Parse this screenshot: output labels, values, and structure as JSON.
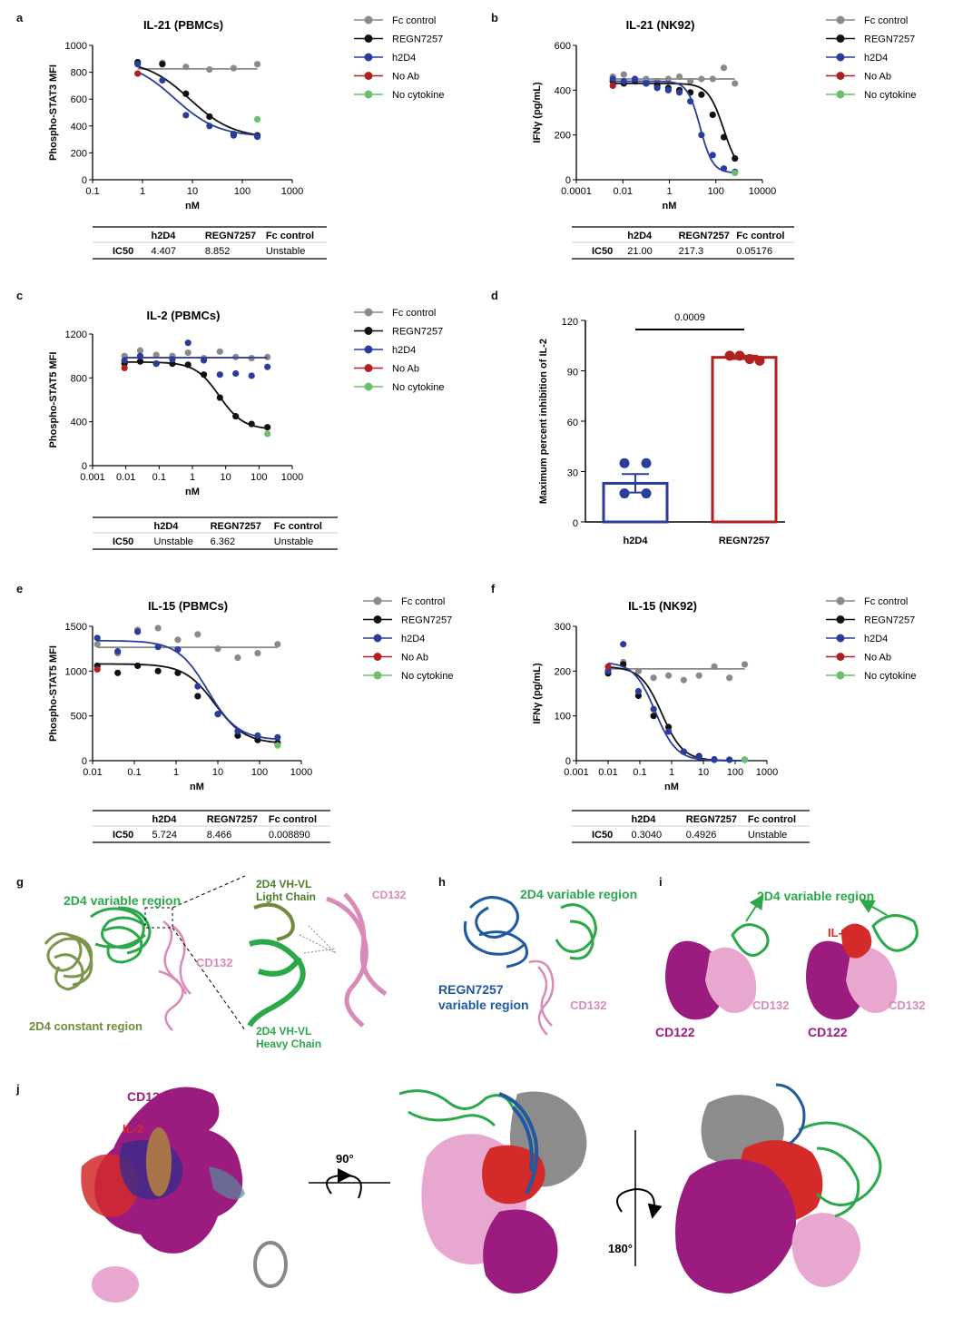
{
  "panel_letters": [
    "a",
    "b",
    "c",
    "d",
    "e",
    "f",
    "g",
    "h",
    "i",
    "j"
  ],
  "legend_labels": [
    "Fc control",
    "REGN7257",
    "h2D4",
    "No Ab",
    "No cytokine"
  ],
  "legend_colors": [
    "#8a8a8a",
    "#111111",
    "#2b3d9c",
    "#b02020",
    "#6bbf6b"
  ],
  "chart_data": [
    {
      "id": "a",
      "type": "scatter",
      "title": "IL-21 (PBMCs)",
      "xlabel": "nM",
      "ylabel": "Phospho-STAT3 MFI",
      "xscale": "log",
      "xlim": [
        0.1,
        1000
      ],
      "ylim": [
        0,
        1000
      ],
      "x_ticks": [
        0.1,
        1,
        10,
        100,
        1000
      ],
      "x_tick_labels": [
        "0.1",
        "1",
        "10",
        "100",
        "1000"
      ],
      "y_ticks": [
        0,
        200,
        400,
        600,
        800,
        1000
      ],
      "y_tick_labels": [
        "0",
        "200",
        "400",
        "600",
        "800",
        "1000"
      ],
      "series": [
        {
          "name": "Fc control",
          "x": [
            0.8,
            2.5,
            7.4,
            22,
            67,
            200
          ],
          "y": [
            870,
            870,
            840,
            820,
            830,
            860
          ],
          "fit": {
            "bottom": 825,
            "top": 825,
            "ec50": 10,
            "hill": 1
          }
        },
        {
          "name": "REGN7257",
          "x": [
            0.8,
            2.5,
            7.4,
            22,
            67,
            200
          ],
          "y": [
            875,
            860,
            640,
            470,
            340,
            330
          ],
          "fit": {
            "bottom": 310,
            "top": 890,
            "ec50": 8.852,
            "hill": 1
          }
        },
        {
          "name": "h2D4",
          "x": [
            0.8,
            2.5,
            7.4,
            22,
            67,
            200
          ],
          "y": [
            860,
            740,
            480,
            400,
            330,
            320
          ],
          "fit": {
            "bottom": 320,
            "top": 890,
            "ec50": 4.407,
            "hill": 1
          }
        },
        {
          "name": "No Ab",
          "x": [
            0.8
          ],
          "y": [
            790
          ]
        },
        {
          "name": "No cytokine",
          "x": [
            200
          ],
          "y": [
            450
          ]
        }
      ],
      "table": {
        "headers": [
          "",
          "h2D4",
          "REGN7257",
          "Fc control"
        ],
        "rows": [
          [
            "IC50",
            "4.407",
            "8.852",
            "Unstable"
          ]
        ]
      }
    },
    {
      "id": "b",
      "type": "scatter",
      "title": "IL-21 (NK92)",
      "xlabel": "nM",
      "ylabel": "IFNγ (pg/mL)",
      "xscale": "log",
      "xlim": [
        0.0001,
        10000
      ],
      "ylim": [
        0,
        600
      ],
      "x_ticks": [
        0.0001,
        0.01,
        1,
        100,
        10000
      ],
      "x_tick_labels": [
        "0.0001",
        "0.01",
        "1",
        "100",
        "10000"
      ],
      "y_ticks": [
        0,
        200,
        400,
        600
      ],
      "y_tick_labels": [
        "0",
        "200",
        "400",
        "600"
      ],
      "series": [
        {
          "name": "Fc control",
          "x": [
            0.0037,
            0.011,
            0.033,
            0.1,
            0.3,
            0.9,
            2.7,
            8,
            24,
            73,
            220,
            660
          ],
          "y": [
            460,
            470,
            450,
            450,
            440,
            450,
            460,
            440,
            450,
            450,
            500,
            430
          ],
          "fit": {
            "bottom": 450,
            "top": 450,
            "ec50": 1,
            "hill": 1
          }
        },
        {
          "name": "REGN7257",
          "x": [
            0.0037,
            0.011,
            0.033,
            0.1,
            0.3,
            0.9,
            2.7,
            8,
            24,
            73,
            220,
            660
          ],
          "y": [
            440,
            430,
            440,
            430,
            420,
            410,
            400,
            390,
            380,
            290,
            190,
            95
          ],
          "fit": {
            "bottom": 20,
            "top": 430,
            "ec50": 217.3,
            "hill": 1.3
          }
        },
        {
          "name": "h2D4",
          "x": [
            0.0037,
            0.011,
            0.033,
            0.1,
            0.3,
            0.9,
            2.7,
            8,
            24,
            73,
            220,
            660
          ],
          "y": [
            450,
            440,
            450,
            430,
            410,
            400,
            390,
            350,
            200,
            110,
            50,
            35
          ],
          "fit": {
            "bottom": 30,
            "top": 440,
            "ec50": 21,
            "hill": 1.6
          }
        },
        {
          "name": "No Ab",
          "x": [
            0.0037
          ],
          "y": [
            420
          ]
        },
        {
          "name": "No cytokine",
          "x": [
            660
          ],
          "y": [
            30
          ]
        }
      ],
      "table": {
        "headers": [
          "",
          "h2D4",
          "REGN7257",
          "Fc control"
        ],
        "rows": [
          [
            "IC50",
            "21.00",
            "217.3",
            "0.05176"
          ]
        ]
      }
    },
    {
      "id": "c",
      "type": "scatter",
      "title": "IL-2 (PBMCs)",
      "xlabel": "nM",
      "ylabel": "Phospho-STAT5 MFI",
      "xscale": "log",
      "xlim": [
        0.001,
        1000
      ],
      "ylim": [
        0,
        1200
      ],
      "x_ticks": [
        0.001,
        0.01,
        0.1,
        1,
        10,
        100,
        1000
      ],
      "x_tick_labels": [
        "0.001",
        "0.01",
        "0.1",
        "1",
        "10",
        "100",
        "1000"
      ],
      "y_ticks": [
        0,
        400,
        800,
        1200
      ],
      "y_tick_labels": [
        "0",
        "400",
        "800",
        "1200"
      ],
      "series": [
        {
          "name": "Fc control",
          "x": [
            0.0091,
            0.027,
            0.082,
            0.25,
            0.74,
            2.2,
            6.7,
            20,
            60,
            180
          ],
          "y": [
            1000,
            1050,
            1010,
            1000,
            1030,
            980,
            1040,
            990,
            980,
            990
          ],
          "fit": {
            "bottom": 985,
            "top": 985,
            "ec50": 1,
            "hill": 1
          }
        },
        {
          "name": "REGN7257",
          "x": [
            0.0091,
            0.027,
            0.082,
            0.25,
            0.74,
            2.2,
            6.7,
            20,
            60,
            180
          ],
          "y": [
            930,
            950,
            930,
            930,
            920,
            830,
            620,
            450,
            380,
            350
          ],
          "fit": {
            "bottom": 330,
            "top": 945,
            "ec50": 6.362,
            "hill": 1.2
          }
        },
        {
          "name": "h2D4",
          "x": [
            0.0091,
            0.027,
            0.082,
            0.25,
            0.74,
            2.2,
            6.7,
            20,
            60,
            180
          ],
          "y": [
            960,
            1000,
            930,
            970,
            1120,
            960,
            830,
            840,
            820,
            900
          ],
          "fit": {
            "bottom": 985,
            "top": 985,
            "ec50": 1,
            "hill": 1
          }
        },
        {
          "name": "No Ab",
          "x": [
            0.0091
          ],
          "y": [
            890
          ]
        },
        {
          "name": "No cytokine",
          "x": [
            180
          ],
          "y": [
            290
          ]
        }
      ],
      "table": {
        "headers": [
          "",
          "h2D4",
          "REGN7257",
          "Fc control"
        ],
        "rows": [
          [
            "IC50",
            "Unstable",
            "6.362",
            "Unstable"
          ]
        ]
      }
    },
    {
      "id": "d",
      "type": "bar",
      "title": "",
      "ylabel": "Maximum percent inhibition of IL-2",
      "categories": [
        "h2D4",
        "REGN7257"
      ],
      "values": [
        23,
        98
      ],
      "errors": [
        5.5,
        1
      ],
      "points": [
        [
          35,
          35,
          17,
          17
        ],
        [
          99,
          99,
          97,
          96
        ]
      ],
      "bar_colors": [
        "#2b3d9c",
        "#b02020"
      ],
      "ylim": [
        0,
        120
      ],
      "y_ticks": [
        0,
        30,
        60,
        90,
        120
      ],
      "y_tick_labels": [
        "0",
        "30",
        "60",
        "90",
        "120"
      ],
      "annotation": "0.0009"
    },
    {
      "id": "e",
      "type": "scatter",
      "title": "IL-15 (PBMCs)",
      "xlabel": "nM",
      "ylabel": "Phospho-STAT5 MFI",
      "xscale": "log",
      "xlim": [
        0.01,
        1000
      ],
      "ylim": [
        0,
        1500
      ],
      "x_ticks": [
        0.01,
        0.1,
        1,
        10,
        100,
        1000
      ],
      "x_tick_labels": [
        "0.01",
        "0.1",
        "1",
        "10",
        "100",
        "1000"
      ],
      "y_ticks": [
        0,
        500,
        1000,
        1500
      ],
      "y_tick_labels": [
        "0",
        "500",
        "1000",
        "1500"
      ],
      "series": [
        {
          "name": "Fc control",
          "x": [
            0.013,
            0.04,
            0.12,
            0.37,
            1.1,
            3.3,
            10,
            30,
            90,
            270
          ],
          "y": [
            1300,
            1200,
            1460,
            1480,
            1350,
            1410,
            1250,
            1150,
            1200,
            1300
          ],
          "fit": {
            "bottom": 1265,
            "top": 1265,
            "ec50": 1,
            "hill": 1
          }
        },
        {
          "name": "REGN7257",
          "x": [
            0.013,
            0.04,
            0.12,
            0.37,
            1.1,
            3.3,
            10,
            30,
            90,
            270
          ],
          "y": [
            1060,
            980,
            1060,
            1000,
            980,
            720,
            520,
            280,
            230,
            200
          ],
          "fit": {
            "bottom": 190,
            "top": 1080,
            "ec50": 8.466,
            "hill": 1.2
          }
        },
        {
          "name": "h2D4",
          "x": [
            0.013,
            0.04,
            0.12,
            0.37,
            1.1,
            3.3,
            10,
            30,
            90,
            270
          ],
          "y": [
            1370,
            1220,
            1440,
            1270,
            1240,
            830,
            520,
            330,
            280,
            260
          ],
          "fit": {
            "bottom": 230,
            "top": 1340,
            "ec50": 5.724,
            "hill": 1.2
          }
        },
        {
          "name": "No Ab",
          "x": [
            0.013
          ],
          "y": [
            1020
          ]
        },
        {
          "name": "No cytokine",
          "x": [
            270
          ],
          "y": [
            170
          ]
        }
      ],
      "table": {
        "headers": [
          "",
          "h2D4",
          "REGN7257",
          "Fc control"
        ],
        "rows": [
          [
            "IC50",
            "5.724",
            "8.466",
            "0.008890"
          ]
        ]
      }
    },
    {
      "id": "f",
      "type": "scatter",
      "title": "IL-15 (NK92)",
      "xlabel": "nM",
      "ylabel": "IFNγ (pg/mL)",
      "xscale": "log",
      "xlim": [
        0.001,
        1000
      ],
      "ylim": [
        0,
        300
      ],
      "x_ticks": [
        0.001,
        0.01,
        0.1,
        1,
        10,
        100,
        1000
      ],
      "x_tick_labels": [
        "0.001",
        "0.01",
        "0.1",
        "1",
        "10",
        "100",
        "1000"
      ],
      "y_ticks": [
        0,
        100,
        200,
        300
      ],
      "y_tick_labels": [
        "0",
        "100",
        "200",
        "300"
      ],
      "series": [
        {
          "name": "Fc control",
          "x": [
            0.01,
            0.03,
            0.09,
            0.27,
            0.8,
            2.4,
            7.3,
            22,
            66,
            200
          ],
          "y": [
            200,
            220,
            200,
            185,
            190,
            180,
            190,
            210,
            185,
            215
          ],
          "fit": {
            "bottom": 205,
            "top": 205,
            "ec50": 1,
            "hill": 1
          }
        },
        {
          "name": "REGN7257",
          "x": [
            0.01,
            0.03,
            0.09,
            0.27,
            0.8,
            2.4,
            7.3,
            22,
            66,
            200
          ],
          "y": [
            195,
            215,
            145,
            100,
            75,
            20,
            10,
            2,
            2,
            2
          ],
          "fit": {
            "bottom": 0,
            "top": 210,
            "ec50": 0.4926,
            "hill": 1.3
          }
        },
        {
          "name": "h2D4",
          "x": [
            0.01,
            0.03,
            0.09,
            0.27,
            0.8,
            2.4,
            7.3,
            22,
            66,
            200
          ],
          "y": [
            200,
            260,
            155,
            115,
            65,
            20,
            8,
            3,
            2,
            2
          ],
          "fit": {
            "bottom": 0,
            "top": 220,
            "ec50": 0.304,
            "hill": 1.3
          }
        },
        {
          "name": "No Ab",
          "x": [
            0.01
          ],
          "y": [
            210
          ]
        },
        {
          "name": "No cytokine",
          "x": [
            200
          ],
          "y": [
            2
          ]
        }
      ],
      "table": {
        "headers": [
          "",
          "h2D4",
          "REGN7257",
          "Fc control"
        ],
        "rows": [
          [
            "IC50",
            "0.3040",
            "0.4926",
            "Unstable"
          ]
        ]
      }
    }
  ],
  "structures": {
    "g": {
      "variable_region": "2D4 variable region",
      "constant_region": "2D4 constant region",
      "cd132": "CD132",
      "inset_top_line1": "2D4 VH-VL",
      "inset_top_line2": "Light Chain",
      "inset_cd132": "CD132",
      "inset_bottom_line1": "2D4 VH-VL",
      "inset_bottom_line2": "Heavy Chain"
    },
    "h": {
      "variable_region": "2D4 variable region",
      "regn_line1": "REGN7257",
      "regn_line2": "variable region",
      "cd132": "CD132"
    },
    "i": {
      "variable_region": "2D4 variable region",
      "il2": "IL-2",
      "cd132_left": "CD132",
      "cd122_left": "CD122",
      "cd132_right": "CD132",
      "cd122_right": "CD122"
    },
    "j": {
      "cd122": "CD122",
      "il2": "IL-2",
      "rot90": "90°",
      "rot180": "180°"
    }
  },
  "colors": {
    "green": "#2aa84a",
    "olive": "#6e8c3a",
    "pink": "#d98ab8",
    "blue": "#1f5aa0",
    "magenta": "#9b1c7e",
    "red": "#d42a2a",
    "grey": "#8c8c8c"
  }
}
